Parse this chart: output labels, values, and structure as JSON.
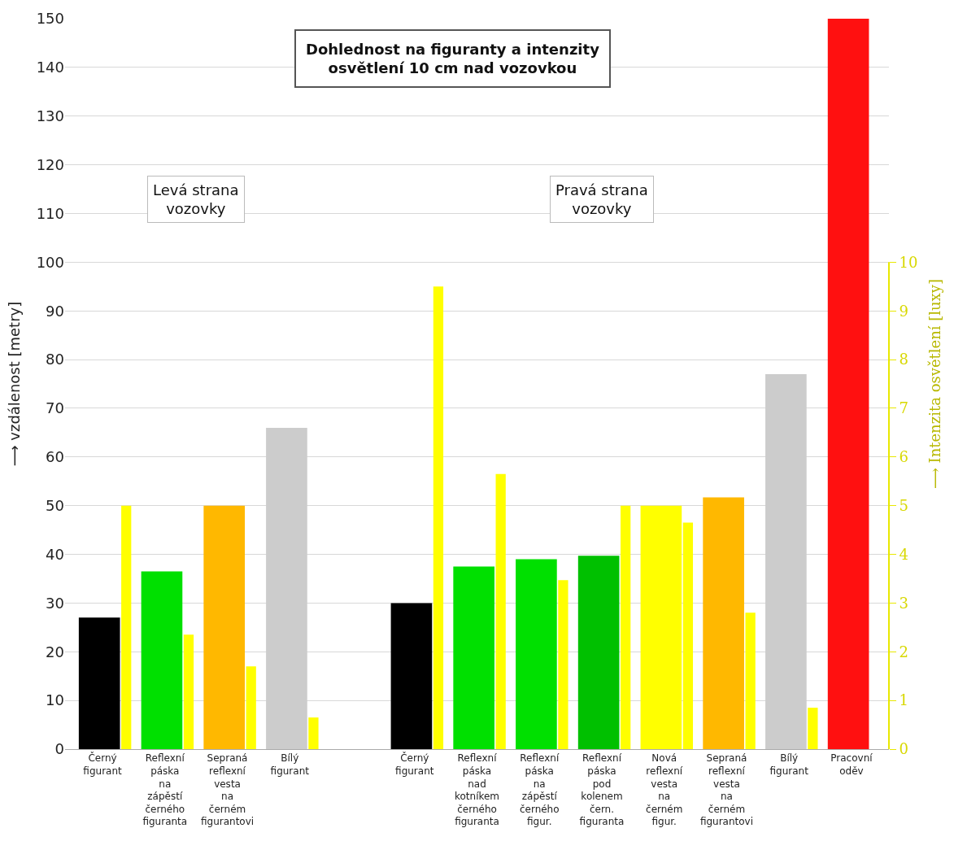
{
  "chart_data": {
    "type": "bar",
    "title": "Dohlednost na figuranty a intenzity osvětlení 10 cm nad vozovkou",
    "ylabel": "⟶ vzdálenost [metry]",
    "y2label": "⟶ Intenzita osvětlení [luxy]",
    "annotations": [
      "Levá strana vozovky",
      "Pravá strana vozovky"
    ],
    "categories": [
      "Černý figurant",
      "Reflexní páska na zápěstí černého figuranta",
      "Sepraná reflexní vesta na černém figurantovi",
      "Bílý figurant",
      null,
      "Černý figurant",
      "Reflexní páska nad kotníkem černého figuranta",
      "Reflexní páska na zápěstí černého figur.",
      "Reflexní páska pod kolenem čern. figuranta",
      "Nová reflexní vesta na černém figur.",
      "Sepraná reflexní vesta na černém figurantovi",
      "Bílý figurant",
      "Pracovní oděv"
    ],
    "series": [
      {
        "colors": [
          "#000000",
          "#00e000",
          "#ffb800",
          "#cccccc",
          "#ffffff",
          "#000000",
          "#00e000",
          "#00e000",
          "#00c000",
          "#ffff00",
          "#ffb800",
          "#cccccc",
          "#ff1010"
        ],
        "values": [
          27,
          36.5,
          50,
          66,
          null,
          30,
          37.5,
          39,
          39.7,
          50,
          51.7,
          77,
          150
        ]
      },
      {
        "color": "#ffff00",
        "axis": "y2",
        "values": [
          5.0,
          2.35,
          1.7,
          0.65,
          null,
          9.5,
          5.65,
          3.47,
          5.0,
          4.65,
          2.8,
          0.85,
          null
        ]
      }
    ],
    "ylim": [
      0,
      150
    ],
    "yticks": [
      0,
      10,
      20,
      30,
      40,
      50,
      60,
      70,
      80,
      90,
      100,
      110,
      120,
      130,
      140,
      150
    ],
    "y2lim": [
      0,
      15
    ],
    "y2ticks": [
      0,
      1,
      2,
      3,
      4,
      5,
      6,
      7,
      8,
      9,
      10
    ],
    "grid": "y",
    "legend": false
  }
}
